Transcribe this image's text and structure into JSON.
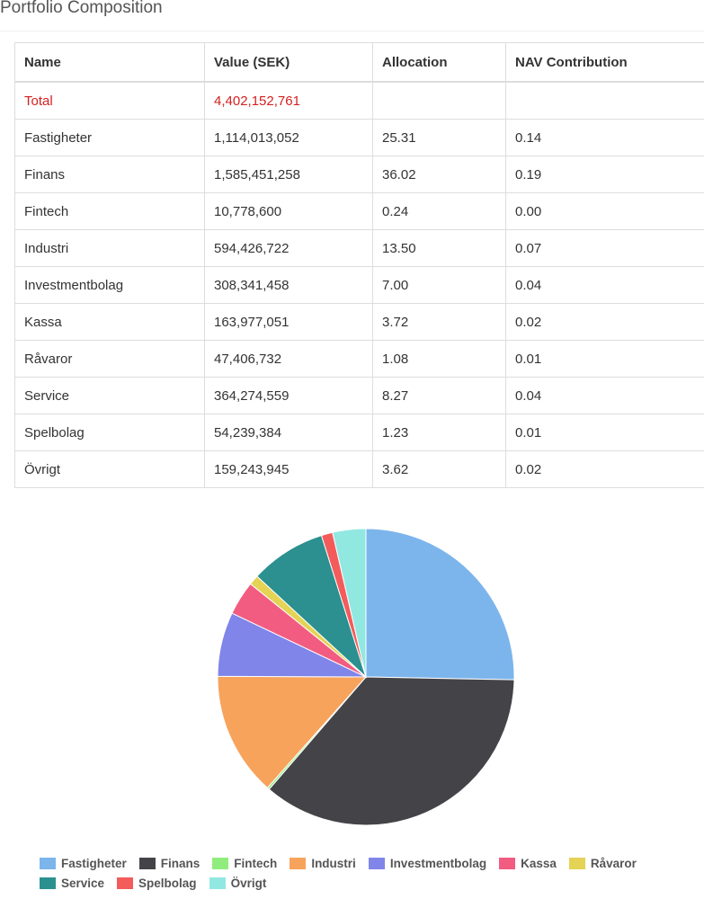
{
  "page": {
    "title": "Portfolio Composition"
  },
  "table": {
    "headers": [
      "Name",
      "Value (SEK)",
      "Allocation",
      "NAV Contribution"
    ],
    "total": {
      "name": "Total",
      "value": "4,402,152,761",
      "allocation": "",
      "nav": ""
    },
    "rows": [
      {
        "name": "Fastigheter",
        "value": "1,114,013,052",
        "allocation": "25.31",
        "nav": "0.14"
      },
      {
        "name": "Finans",
        "value": "1,585,451,258",
        "allocation": "36.02",
        "nav": "0.19"
      },
      {
        "name": "Fintech",
        "value": "10,778,600",
        "allocation": "0.24",
        "nav": "0.00"
      },
      {
        "name": "Industri",
        "value": "594,426,722",
        "allocation": "13.50",
        "nav": "0.07"
      },
      {
        "name": "Investmentbolag",
        "value": "308,341,458",
        "allocation": "7.00",
        "nav": "0.04"
      },
      {
        "name": "Kassa",
        "value": "163,977,051",
        "allocation": "3.72",
        "nav": "0.02"
      },
      {
        "name": "Råvaror",
        "value": "47,406,732",
        "allocation": "1.08",
        "nav": "0.01"
      },
      {
        "name": "Service",
        "value": "364,274,559",
        "allocation": "8.27",
        "nav": "0.04"
      },
      {
        "name": "Spelbolag",
        "value": "54,239,384",
        "allocation": "1.23",
        "nav": "0.01"
      },
      {
        "name": "Övrigt",
        "value": "159,243,945",
        "allocation": "3.62",
        "nav": "0.02"
      }
    ]
  },
  "chart_data": {
    "type": "pie",
    "categories": [
      "Fastigheter",
      "Finans",
      "Fintech",
      "Industri",
      "Investmentbolag",
      "Kassa",
      "Råvaror",
      "Service",
      "Spelbolag",
      "Övrigt"
    ],
    "values": [
      1114013052,
      1585451258,
      10778600,
      594426722,
      308341458,
      163977051,
      47406732,
      364274559,
      54239384,
      159243945
    ],
    "colors": [
      "#7cb5ec",
      "#434348",
      "#90ed7d",
      "#f7a35c",
      "#8085e9",
      "#f15c80",
      "#e4d354",
      "#2b908f",
      "#f45b5b",
      "#91e8e1"
    ],
    "legend_position": "bottom"
  }
}
